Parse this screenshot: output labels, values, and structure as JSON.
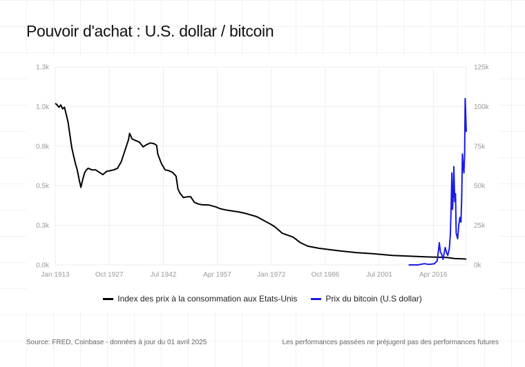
{
  "title": "Pouvoir d'achat : U.S. dollar / bitcoin",
  "footer": {
    "source": "Source: FRED, Coinbase - données à jour du 01 avril 2025",
    "disclaimer": "Les performances passées ne préjugent pas des performances futures"
  },
  "chart_data": {
    "type": "line",
    "title": "Pouvoir d'achat : U.S. dollar / bitcoin",
    "grid": true,
    "legend_position": "bottom",
    "x_range": [
      1913,
      2025.25
    ],
    "x_ticks": [
      {
        "label": "Jan 1913",
        "value": 1913
      },
      {
        "label": "Oct 1927",
        "value": 1927.75
      },
      {
        "label": "Jul 1942",
        "value": 1942.5
      },
      {
        "label": "Apr 1957",
        "value": 1957.25
      },
      {
        "label": "Jan 1972",
        "value": 1972
      },
      {
        "label": "Oct 1986",
        "value": 1986.75
      },
      {
        "label": "Jul 2001",
        "value": 2001.5
      },
      {
        "label": "Apr 2016",
        "value": 2016.25
      }
    ],
    "y_left": {
      "range": [
        0,
        1250
      ],
      "ticks": [
        {
          "label": "0.0k",
          "value": 0
        },
        {
          "label": "0.3k",
          "value": 250
        },
        {
          "label": "0.5k",
          "value": 500
        },
        {
          "label": "0.8k",
          "value": 750
        },
        {
          "label": "1.0k",
          "value": 1000
        },
        {
          "label": "1.3k",
          "value": 1250
        }
      ]
    },
    "y_right": {
      "range": [
        0,
        125000
      ],
      "ticks": [
        {
          "label": "0k",
          "value": 0
        },
        {
          "label": "25k",
          "value": 25000
        },
        {
          "label": "50k",
          "value": 50000
        },
        {
          "label": "75k",
          "value": 75000
        },
        {
          "label": "100k",
          "value": 100000
        },
        {
          "label": "125k",
          "value": 125000
        }
      ]
    },
    "series": [
      {
        "name": "Index des prix à la consommation aux Etats-Unis",
        "axis": "left",
        "color": "#000000",
        "x": [
          1913,
          1913.5,
          1914,
          1914.5,
          1915,
          1915.5,
          1916,
          1916.5,
          1917,
          1917.5,
          1918,
          1918.5,
          1919,
          1919.5,
          1920,
          1920.5,
          1921,
          1921.5,
          1922,
          1923,
          1924,
          1925,
          1926,
          1927,
          1928,
          1929,
          1930,
          1931,
          1932,
          1933,
          1933.3,
          1934,
          1935,
          1936,
          1937,
          1938,
          1939,
          1940,
          1940.7,
          1941,
          1942,
          1943,
          1944,
          1945,
          1946,
          1946.5,
          1947,
          1948,
          1949,
          1950,
          1951,
          1952,
          1953,
          1955,
          1957,
          1958,
          1960,
          1963,
          1965,
          1968,
          1970,
          1972,
          1973,
          1975,
          1978,
          1980,
          1982,
          1985,
          1990,
          1995,
          2000,
          2005,
          2010,
          2015,
          2020,
          2022,
          2025.25
        ],
        "values": [
          1020,
          1010,
          995,
          1010,
          985,
          995,
          950,
          900,
          820,
          740,
          690,
          640,
          600,
          540,
          490,
          540,
          580,
          600,
          610,
          600,
          600,
          585,
          570,
          590,
          595,
          600,
          610,
          650,
          720,
          790,
          830,
          795,
          785,
          775,
          745,
          760,
          770,
          765,
          755,
          700,
          640,
          600,
          595,
          585,
          560,
          480,
          455,
          425,
          430,
          430,
          395,
          385,
          380,
          378,
          365,
          355,
          345,
          335,
          325,
          305,
          280,
          255,
          240,
          200,
          175,
          140,
          118,
          105,
          90,
          78,
          70,
          60,
          55,
          50,
          47,
          40,
          37
        ]
      },
      {
        "name": "Prix du bitcoin (U.S dollar)",
        "axis": "right",
        "color": "#1a1ae6",
        "x": [
          2009.5,
          2012,
          2013.8,
          2015,
          2016.5,
          2017.3,
          2017.9,
          2018.2,
          2018.5,
          2018.9,
          2019.5,
          2019.9,
          2020.2,
          2020.6,
          2020.9,
          2021.1,
          2021.3,
          2021.5,
          2021.7,
          2021.85,
          2022.1,
          2022.3,
          2022.5,
          2022.9,
          2023.2,
          2023.5,
          2023.8,
          2024.0,
          2024.2,
          2024.4,
          2024.6,
          2024.8,
          2024.95,
          2025.1,
          2025.25
        ],
        "values": [
          0,
          10,
          800,
          300,
          700,
          2500,
          14000,
          8000,
          7000,
          3500,
          11000,
          7500,
          6000,
          10000,
          19000,
          35000,
          58000,
          35000,
          45000,
          62000,
          40000,
          45000,
          20000,
          16500,
          25000,
          30000,
          27000,
          43000,
          70000,
          62000,
          58000,
          70000,
          105000,
          95000,
          84000
        ]
      }
    ]
  }
}
